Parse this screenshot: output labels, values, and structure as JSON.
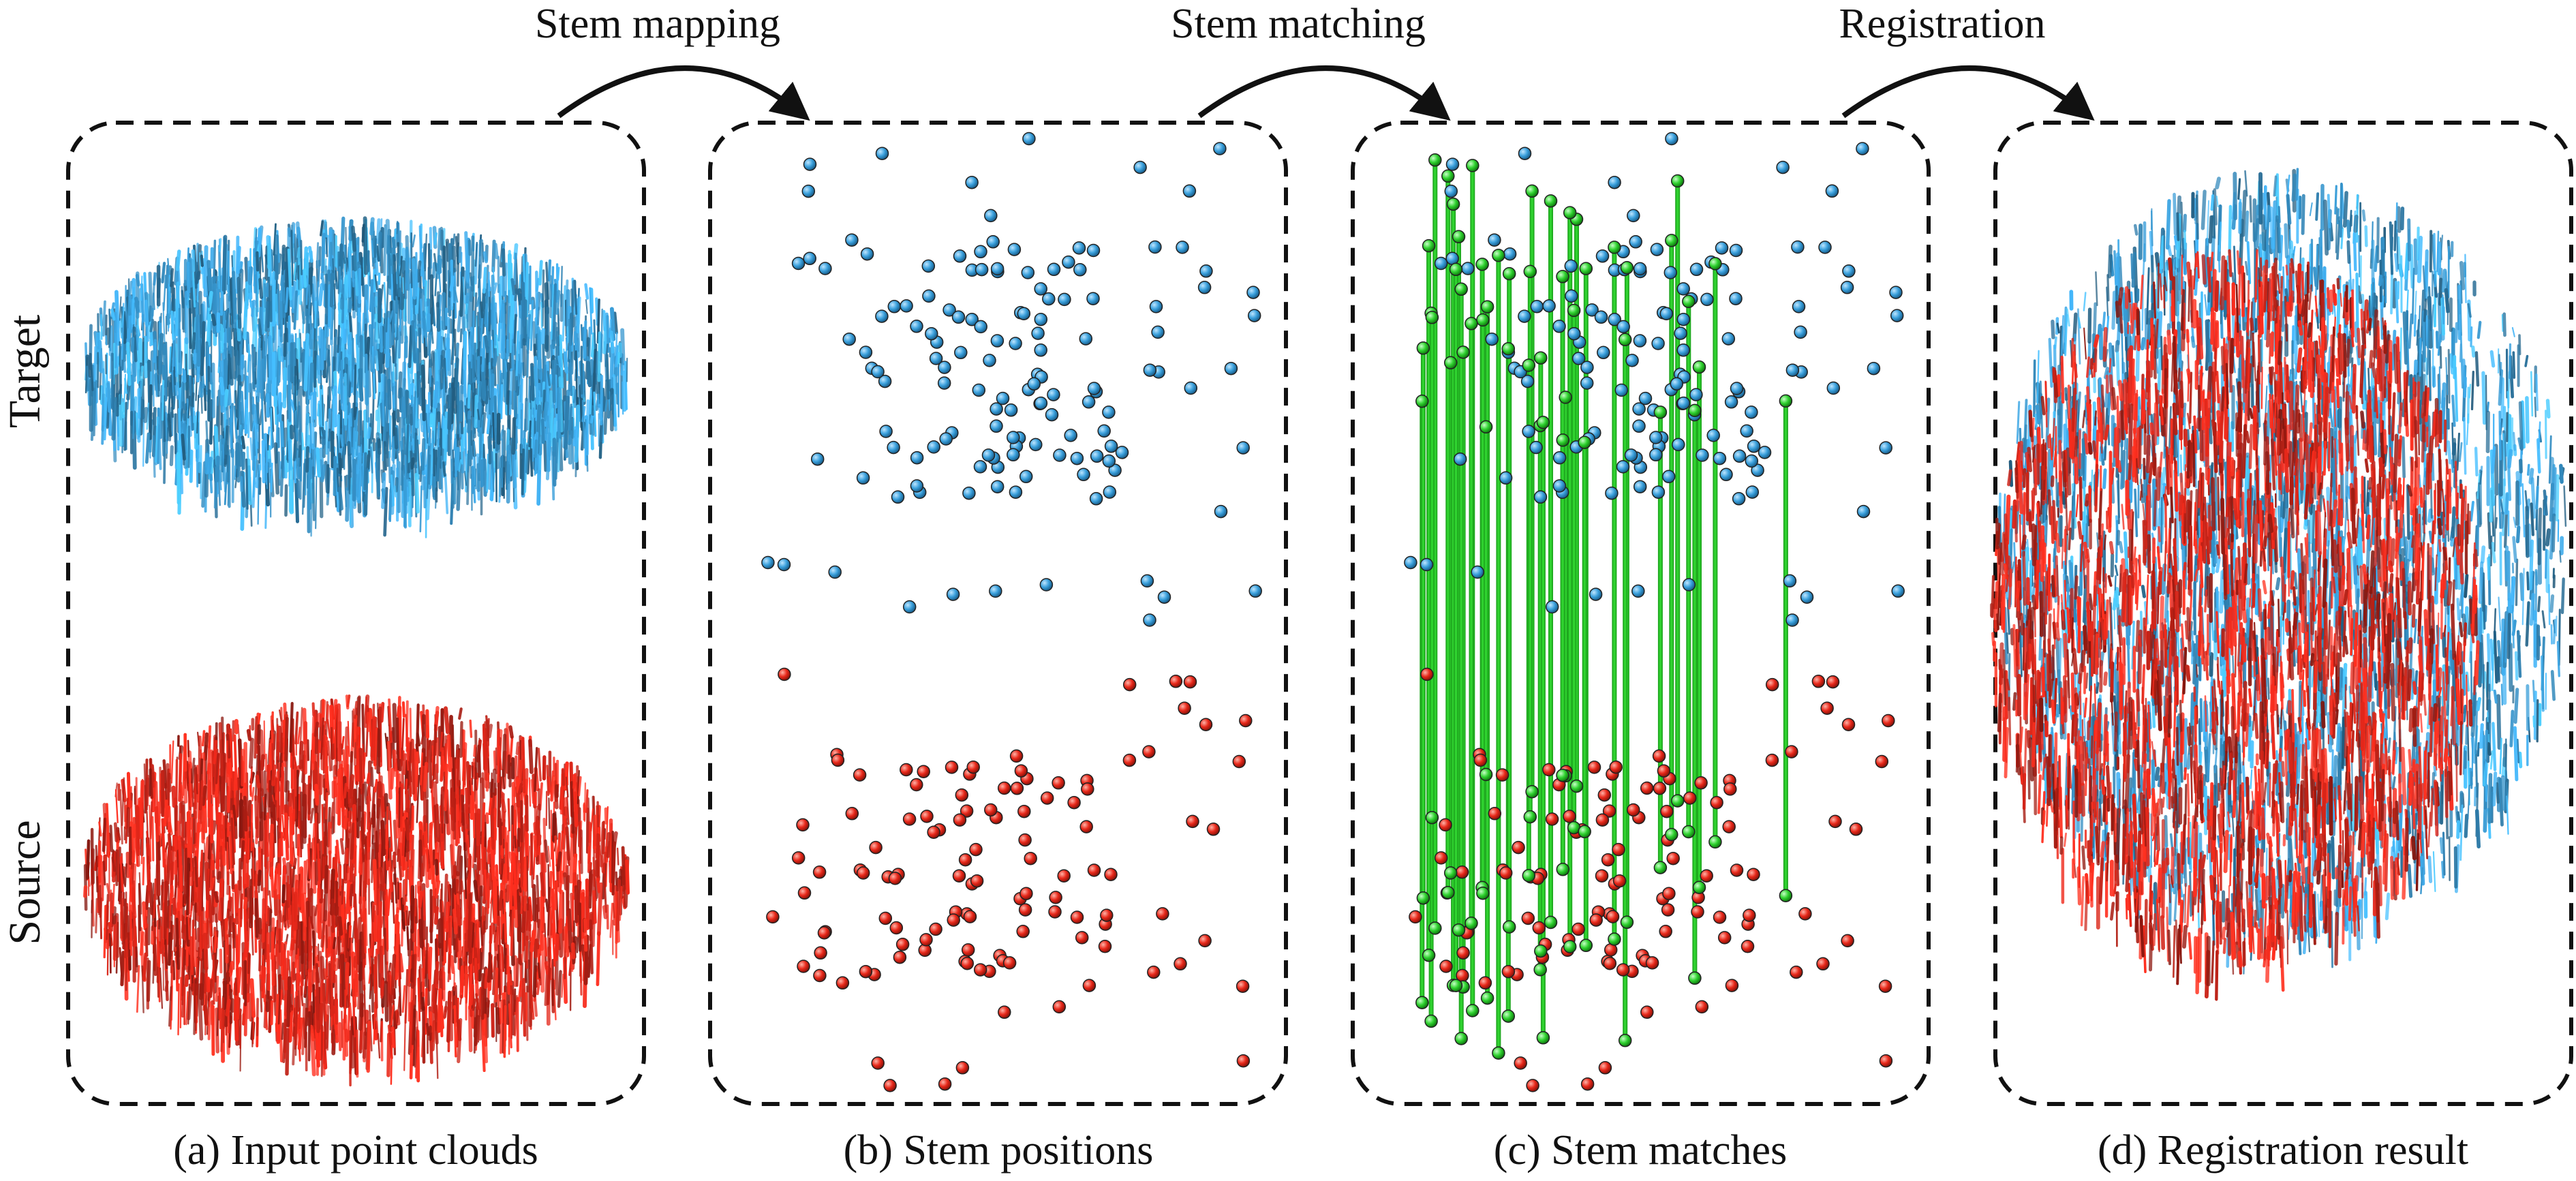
{
  "figure": {
    "row_labels": {
      "top": "Target",
      "bottom": "Source"
    },
    "panels": [
      {
        "id": "a",
        "caption": "(a) Input point clouds"
      },
      {
        "id": "b",
        "caption": "(b) Stem positions"
      },
      {
        "id": "c",
        "caption": "(c) Stem matches"
      },
      {
        "id": "d",
        "caption": "(d) Registration result"
      }
    ],
    "steps": [
      {
        "label": "Stem mapping"
      },
      {
        "label": "Stem matching"
      },
      {
        "label": "Registration"
      }
    ]
  },
  "colors": {
    "target": "#3aa0dc",
    "source": "#e8281a",
    "match": "#2fd22f",
    "frame": "#111111",
    "text": "#111111"
  },
  "icons": [
    "curved-arrow-icon"
  ]
}
